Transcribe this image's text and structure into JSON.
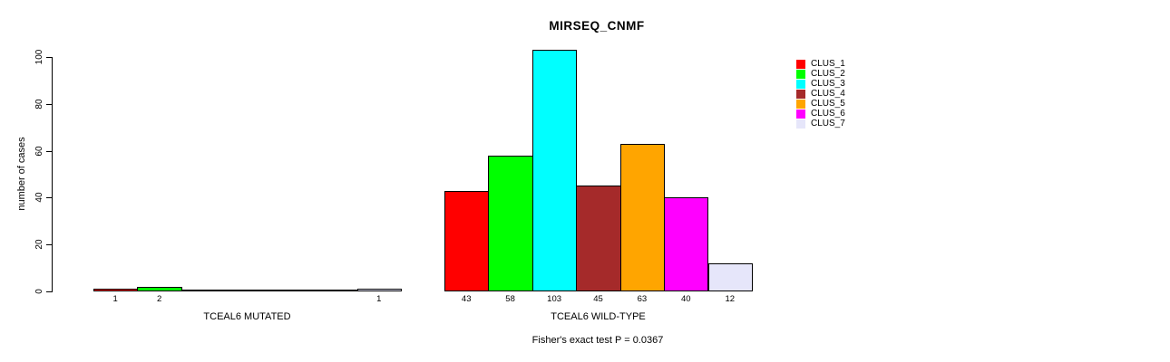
{
  "chart_data": {
    "type": "bar",
    "title": "MIRSEQ_CNMF",
    "ylabel": "number of cases",
    "ylim": [
      0,
      100
    ],
    "yticks": [
      0,
      20,
      40,
      60,
      80,
      100
    ],
    "grid": false,
    "annotation": "Fisher's exact test P = 0.0367",
    "legend": {
      "position": "right",
      "entries": [
        {
          "label": "CLUS_1",
          "color": "#FF0000"
        },
        {
          "label": "CLUS_2",
          "color": "#00FF00"
        },
        {
          "label": "CLUS_3",
          "color": "#00FFFF"
        },
        {
          "label": "CLUS_4",
          "color": "#A52A2A"
        },
        {
          "label": "CLUS_5",
          "color": "#FFA500"
        },
        {
          "label": "CLUS_6",
          "color": "#FF00FF"
        },
        {
          "label": "CLUS_7",
          "color": "#E6E6FA"
        }
      ]
    },
    "groups": [
      {
        "label": "TCEAL6 MUTATED",
        "values": [
          1,
          2,
          0,
          0,
          0,
          0,
          1
        ],
        "bar_labels": [
          "1",
          "2",
          "",
          "",
          "",
          "",
          "1"
        ]
      },
      {
        "label": "TCEAL6 WILD-TYPE",
        "values": [
          43,
          58,
          103,
          45,
          63,
          40,
          12
        ],
        "bar_labels": [
          "43",
          "58",
          "103",
          "45",
          "63",
          "40",
          "12"
        ]
      }
    ]
  }
}
